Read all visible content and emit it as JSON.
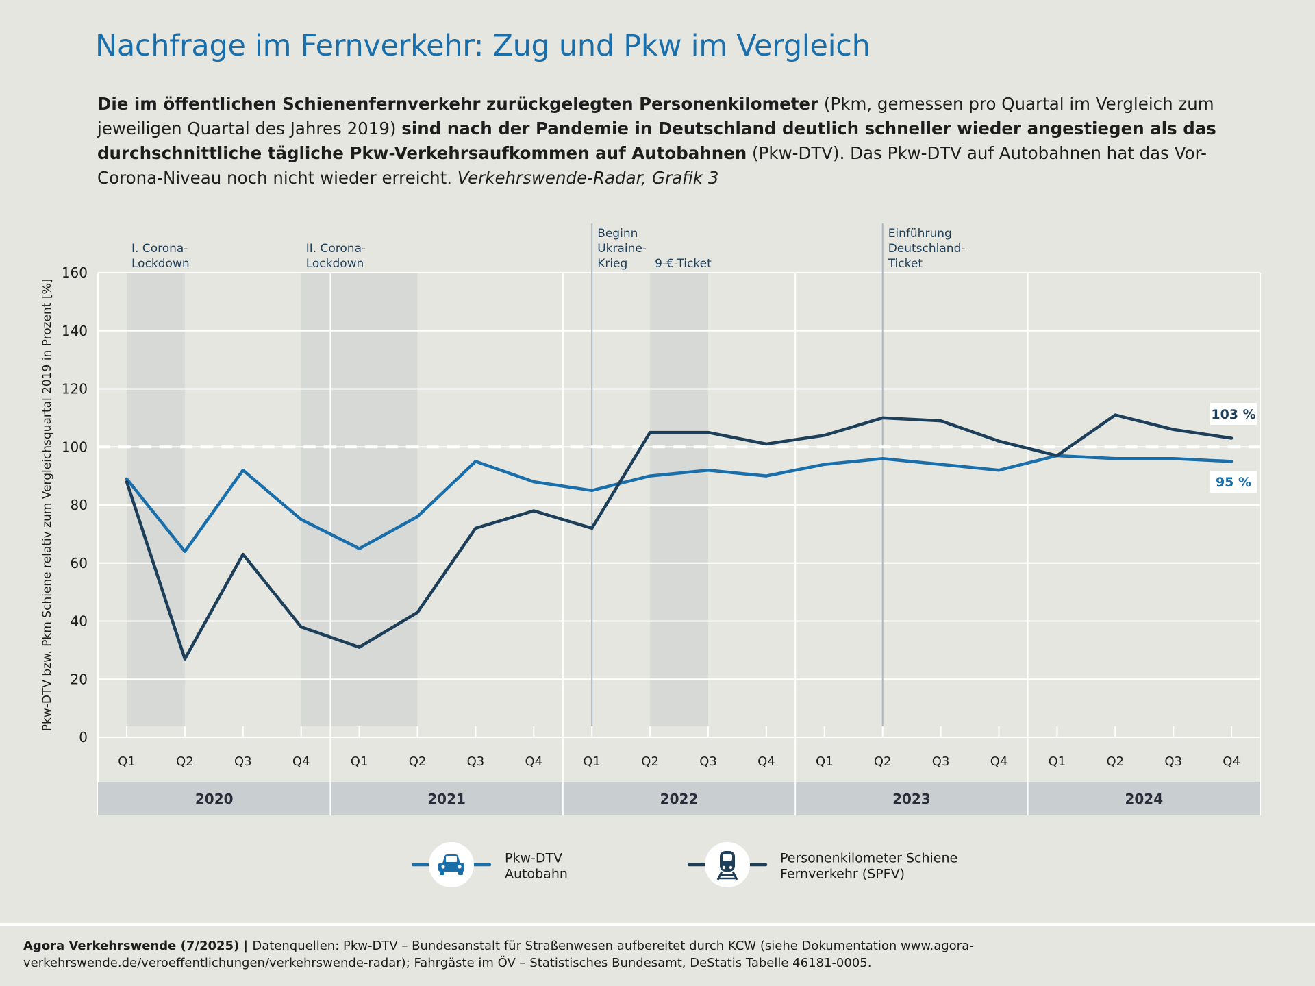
{
  "title": "Nachfrage im Fernverkehr: Zug und Pkw im Vergleich",
  "subtitle": {
    "b1": "Die im öffentlichen Schienenfernverkehr zurückgelegten Personenkilometer",
    "t1": " (Pkm, gemessen pro Quartal im Vergleich zum jeweiligen Quartal des Jahres 2019) ",
    "b2": "sind nach der Pandemie in Deutschland deutlich schneller wieder angestiegen als das durchschnittliche tägliche Pkw-Verkehrsaufkommen auf Autobahnen",
    "t2": " (Pkw-DTV). Das Pkw-DTV auf Autobahnen hat das Vor-Corona-Niveau noch nicht wieder erreicht. ",
    "i1": "Verkehrswende-Radar, Grafik 3"
  },
  "chart_data": {
    "type": "line",
    "ylabel": "Pkw-DTV bzw. Pkm Schiene relativ zum Vergleichsquartal 2019 in Prozent [%]",
    "ylim": [
      0,
      160
    ],
    "yticks": [
      0,
      20,
      40,
      60,
      80,
      100,
      120,
      140,
      160
    ],
    "reference_line": 100,
    "grid": true,
    "x": [
      "Q1",
      "Q2",
      "Q3",
      "Q4",
      "Q1",
      "Q2",
      "Q3",
      "Q4",
      "Q1",
      "Q2",
      "Q3",
      "Q4",
      "Q1",
      "Q2",
      "Q3",
      "Q4",
      "Q1",
      "Q2",
      "Q3",
      "Q4"
    ],
    "years": [
      "2020",
      "2021",
      "2022",
      "2023",
      "2024"
    ],
    "series": [
      {
        "name": "Pkw-DTV Autobahn",
        "color": "#1a6fab",
        "values": [
          89,
          64,
          92,
          75,
          65,
          76,
          95,
          88,
          85,
          90,
          92,
          90,
          94,
          96,
          94,
          92,
          97,
          96,
          96,
          95
        ],
        "end_label": "95 %"
      },
      {
        "name": "Personenkilometer Schiene Fernverkehr (SPFV)",
        "color": "#1d3f5a",
        "values": [
          88,
          27,
          63,
          38,
          31,
          43,
          72,
          78,
          72,
          105,
          105,
          101,
          104,
          110,
          109,
          102,
          97,
          111,
          106,
          103
        ],
        "end_label": "103 %"
      }
    ],
    "shaded_periods": [
      {
        "label": "I. Corona-Lockdown",
        "lines": [
          "I. Corona-",
          "Lockdown"
        ],
        "from": 0,
        "to": 1
      },
      {
        "label": "II. Corona-Lockdown",
        "lines": [
          "II. Corona-",
          "Lockdown"
        ],
        "from": 3,
        "to": 5
      },
      {
        "label": "9-€-Ticket",
        "lines": [
          "9-€-Ticket"
        ],
        "from": 9,
        "to": 10
      }
    ],
    "event_lines": [
      {
        "label": "Beginn Ukraine-Krieg",
        "lines": [
          "Beginn",
          "Ukraine-",
          "Krieg"
        ],
        "at": 8
      },
      {
        "label": "Einführung Deutschland-Ticket",
        "lines": [
          "Einführung",
          "Deutschland-",
          "Ticket"
        ],
        "at": 13
      }
    ]
  },
  "legend": [
    {
      "icon": "car-icon",
      "color": "#1a6fab",
      "label_lines": [
        "Pkw-DTV",
        "Autobahn"
      ]
    },
    {
      "icon": "train-icon",
      "color": "#1d3f5a",
      "label_lines": [
        "Personenkilometer Schiene",
        "Fernverkehr (SPFV)"
      ]
    }
  ],
  "footer": {
    "bold": "Agora Verkehrswende (7/2025) | ",
    "text": "Datenquellen: Pkw-DTV – Bundesanstalt für Straßenwesen aufbereitet durch KCW (siehe Dokumentation www.agora-verkehrswende.de/veroeffentlichungen/verkehrswende-radar); Fahrgäste im ÖV – Statistisches Bundesamt, DeStatis Tabelle 46181-0005."
  }
}
